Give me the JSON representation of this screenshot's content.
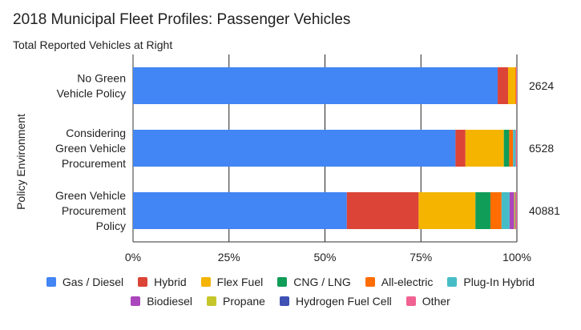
{
  "chart_data": {
    "type": "bar",
    "orientation": "horizontal",
    "stacked": "percent",
    "title": "2018 Municipal Fleet Profiles: Passenger Vehicles",
    "subtitle": "Total Reported Vehicles at Right",
    "ylabel": "Policy Environment",
    "xlim": [
      0,
      100
    ],
    "x_ticks": [
      "0%",
      "25%",
      "50%",
      "75%",
      "100%"
    ],
    "grid": true,
    "legend_position": "bottom",
    "categories": [
      "No Green Vehicle Policy",
      "Considering Green Vehicle Procurement",
      "Green Vehicle Procurement Policy"
    ],
    "category_lines": [
      [
        "No Green",
        "Vehicle Policy"
      ],
      [
        "Considering",
        "Green Vehicle",
        "Procurement"
      ],
      [
        "Green Vehicle",
        "Procurement",
        "Policy"
      ]
    ],
    "totals": [
      "2624",
      "6528",
      "40881"
    ],
    "series": [
      {
        "name": "Gas / Diesel",
        "color": "#4285F4",
        "values": [
          95.0,
          84.0,
          55.7
        ]
      },
      {
        "name": "Hybrid",
        "color": "#DB4437",
        "values": [
          2.7,
          2.6,
          18.7
        ]
      },
      {
        "name": "Flex Fuel",
        "color": "#F4B400",
        "values": [
          1.9,
          10.0,
          14.8
        ]
      },
      {
        "name": "CNG / LNG",
        "color": "#0F9D58",
        "values": [
          0.0,
          1.4,
          3.9
        ]
      },
      {
        "name": "All-electric",
        "color": "#FF6D00",
        "values": [
          0.2,
          1.0,
          2.9
        ]
      },
      {
        "name": "Plug-In Hybrid",
        "color": "#46BDC6",
        "values": [
          0.0,
          0.7,
          2.1
        ]
      },
      {
        "name": "Biodiesel",
        "color": "#AB47BC",
        "values": [
          0.0,
          0.0,
          1.2
        ]
      },
      {
        "name": "Propane",
        "color": "#C5C62A",
        "values": [
          0.0,
          0.0,
          0.3
        ]
      },
      {
        "name": "Hydrogen Fuel Cell",
        "color": "#3F51B5",
        "values": [
          0.0,
          0.0,
          0.1
        ]
      },
      {
        "name": "Other",
        "color": "#F06292",
        "values": [
          0.2,
          0.3,
          0.3
        ]
      }
    ]
  }
}
